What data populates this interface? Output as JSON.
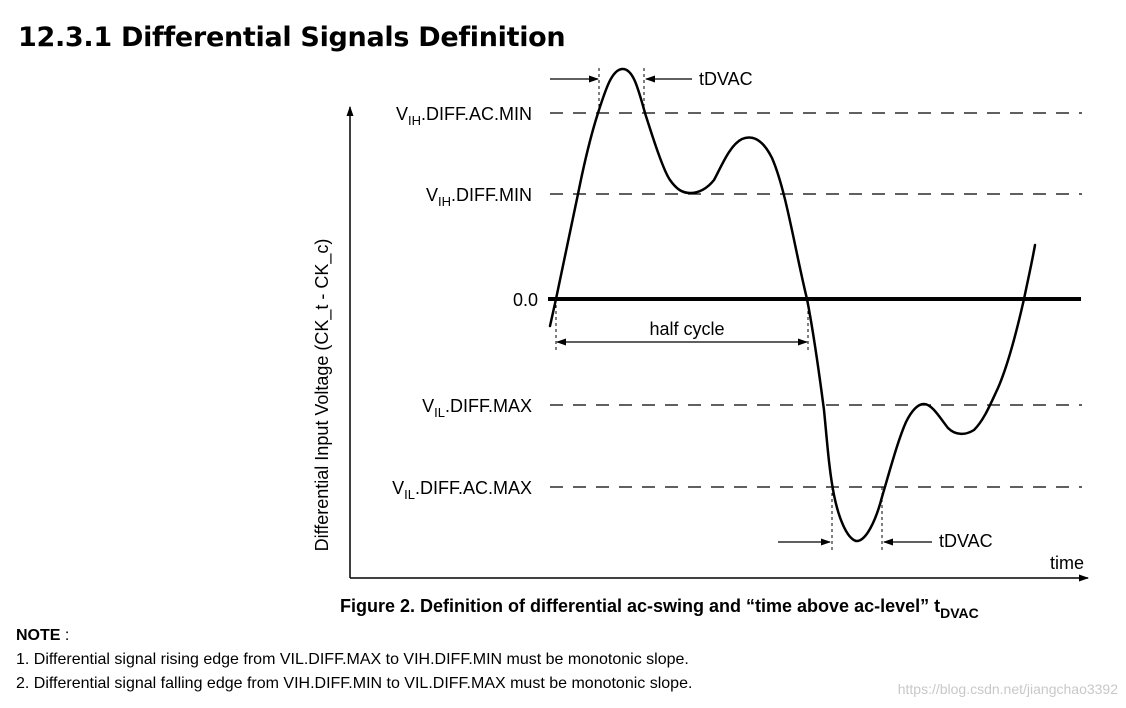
{
  "title": "12.3.1 Differential Signals Definition",
  "diagram": {
    "y_axis_label": "Differential Input Voltage (CK_t - CK_c)",
    "x_axis_label": "time",
    "levels": {
      "vih_ac_main": "V",
      "vih_ac_sub": "IH",
      "vih_ac_rest": ".DIFF.AC.MIN",
      "vih_main": "V",
      "vih_sub": "IH",
      "vih_rest": ".DIFF.MIN",
      "zero": "0.0",
      "vil_main": "V",
      "vil_sub": "IL",
      "vil_rest": ".DIFF.MAX",
      "vil_ac_main": "V",
      "vil_ac_sub": "IL",
      "vil_ac_rest": ".DIFF.AC.MAX"
    },
    "annotations": {
      "tdvac_top": "tDVAC",
      "tdvac_bottom": "tDVAC",
      "half_cycle": "half cycle"
    }
  },
  "caption": {
    "main": "Figure 2. Definition of differential ac-swing and “time above ac-level” t",
    "sub": "DVAC"
  },
  "note": {
    "title": "NOTE",
    "sep": " :",
    "line1": "1. Differential signal rising edge from VIL.DIFF.MAX to VIH.DIFF.MIN must be monotonic slope.",
    "line2": "2. Differential signal falling edge from VIH.DIFF.MIN to VIL.DIFF.MAX must be monotonic slope."
  },
  "watermark": "https://blog.csdn.net/jiangchao3392"
}
